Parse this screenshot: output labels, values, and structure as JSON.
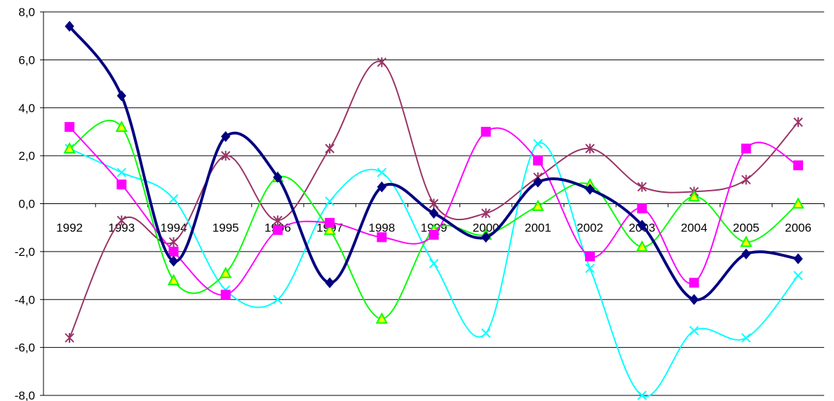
{
  "chart_data": {
    "type": "line",
    "categories": [
      "1992",
      "1993",
      "1994",
      "1995",
      "1996",
      "1997",
      "1998",
      "1999",
      "2000",
      "2001",
      "2002",
      "2003",
      "2004",
      "2005",
      "2006"
    ],
    "ylim": [
      -8,
      8
    ],
    "yticks": [
      "8,0",
      "6,0",
      "4,0",
      "2,0",
      "0,0",
      "-2,0",
      "-4,0",
      "-6,0",
      "-8,0"
    ],
    "grid": true,
    "series": [
      {
        "color": "#000080",
        "marker": "diamond",
        "values": [
          7.4,
          4.5,
          -2.4,
          2.8,
          1.1,
          -3.3,
          0.7,
          -0.4,
          -1.4,
          0.9,
          0.6,
          -0.9,
          -4.0,
          -2.1,
          -2.3
        ]
      },
      {
        "color": "#ff00ff",
        "marker": "square",
        "values": [
          3.2,
          0.8,
          -2.0,
          -3.8,
          -1.1,
          -0.8,
          -1.4,
          -1.3,
          3.0,
          1.8,
          -2.2,
          -0.2,
          -3.3,
          2.3,
          1.6
        ]
      },
      {
        "color": "#00ff00",
        "marker": "triangle",
        "values": [
          2.3,
          3.2,
          -3.2,
          -2.9,
          1.1,
          -1.1,
          -4.8,
          -1.1,
          -1.3,
          -0.1,
          0.8,
          -1.8,
          0.3,
          -1.6,
          0.0
        ]
      },
      {
        "color": "#00ffff",
        "marker": "x",
        "values": [
          2.3,
          1.3,
          0.2,
          -3.6,
          -4.0,
          0.1,
          1.3,
          -2.5,
          -5.4,
          2.5,
          -2.7,
          -8.0,
          -5.3,
          -5.6,
          -3.0
        ]
      },
      {
        "color": "#993366",
        "marker": "star",
        "values": [
          -5.6,
          -0.7,
          -1.6,
          2.0,
          -0.7,
          2.3,
          5.9,
          0.0,
          -0.4,
          1.1,
          2.3,
          0.7,
          0.5,
          1.0,
          3.4
        ]
      }
    ]
  }
}
